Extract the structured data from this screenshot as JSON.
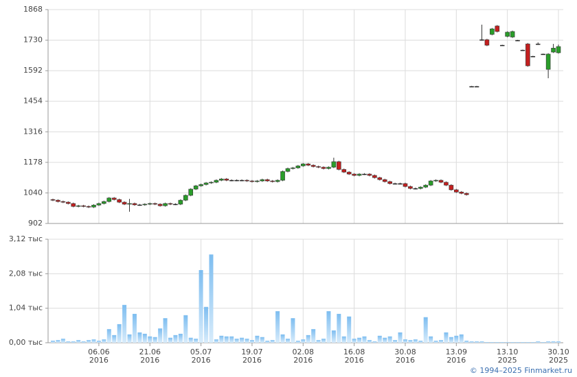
{
  "chart_data": [
    {
      "type": "candlestick",
      "ylim": [
        902,
        1868
      ],
      "yticks": [
        902,
        1040,
        1178,
        1316,
        1454,
        1592,
        1730,
        1868
      ],
      "grid": true,
      "up_color": "#2a9d2a",
      "down_color": "#c42020",
      "open": [
        1010,
        1007,
        1001,
        998,
        992,
        979,
        982,
        979,
        976,
        985,
        992,
        1001,
        1017,
        1010,
        998,
        989,
        992,
        986,
        986,
        989,
        992,
        989,
        982,
        992,
        989,
        989,
        1007,
        1029,
        1057,
        1072,
        1078,
        1085,
        1088,
        1097,
        1103,
        1097,
        1097,
        1097,
        1097,
        1094,
        1091,
        1094,
        1100,
        1094,
        1091,
        1097,
        1137,
        1150,
        1153,
        1162,
        1171,
        1165,
        1159,
        1156,
        1150,
        1156,
        1181,
        1146,
        1134,
        1125,
        1119,
        1125,
        1125,
        1119,
        1109,
        1100,
        1091,
        1082,
        1082,
        1082,
        1069,
        1060,
        1060,
        1066,
        1075,
        1094,
        1097,
        1088,
        1075,
        1054,
        1044,
        1038,
        1521,
        1521,
        1732,
        1732,
        1756,
        1794,
        1707,
        1747,
        1744,
        1729,
        1685,
        1713,
        1657,
        1713,
        1667,
        1598,
        1676,
        1673
      ],
      "high": [
        1014,
        1011,
        1005,
        1002,
        996,
        986,
        986,
        983,
        989,
        996,
        1005,
        1021,
        1021,
        1014,
        1002,
        1013,
        996,
        990,
        993,
        996,
        996,
        993,
        996,
        996,
        993,
        1011,
        1033,
        1061,
        1076,
        1082,
        1089,
        1092,
        1101,
        1107,
        1107,
        1101,
        1101,
        1101,
        1101,
        1098,
        1098,
        1104,
        1104,
        1098,
        1101,
        1141,
        1154,
        1157,
        1166,
        1175,
        1175,
        1169,
        1163,
        1160,
        1160,
        1199,
        1185,
        1150,
        1138,
        1129,
        1129,
        1129,
        1129,
        1123,
        1113,
        1104,
        1095,
        1086,
        1086,
        1086,
        1073,
        1064,
        1070,
        1079,
        1098,
        1101,
        1101,
        1092,
        1079,
        1058,
        1048,
        1042,
        1523,
        1523,
        1800,
        1736,
        1785,
        1798,
        1709,
        1770,
        1773,
        1731,
        1687,
        1717,
        1659,
        1720,
        1669,
        1671,
        1713,
        1710
      ],
      "low": [
        1003,
        997,
        994,
        988,
        975,
        975,
        975,
        972,
        972,
        981,
        988,
        997,
        1006,
        994,
        985,
        955,
        982,
        982,
        982,
        985,
        985,
        978,
        978,
        985,
        985,
        985,
        1003,
        1025,
        1053,
        1068,
        1074,
        1081,
        1084,
        1093,
        1093,
        1093,
        1093,
        1093,
        1090,
        1087,
        1087,
        1090,
        1090,
        1087,
        1087,
        1093,
        1133,
        1146,
        1149,
        1158,
        1161,
        1155,
        1152,
        1146,
        1146,
        1152,
        1142,
        1130,
        1121,
        1115,
        1115,
        1121,
        1115,
        1105,
        1096,
        1087,
        1078,
        1078,
        1078,
        1065,
        1056,
        1056,
        1056,
        1062,
        1071,
        1090,
        1084,
        1071,
        1050,
        1040,
        1034,
        1028,
        1519,
        1519,
        1728,
        1703,
        1752,
        1765,
        1705,
        1743,
        1740,
        1727,
        1683,
        1610,
        1655,
        1709,
        1665,
        1558,
        1672,
        1669
      ],
      "close": [
        1007,
        1001,
        998,
        992,
        979,
        982,
        979,
        976,
        985,
        992,
        1001,
        1017,
        1010,
        998,
        989,
        992,
        986,
        986,
        989,
        992,
        989,
        982,
        992,
        989,
        989,
        1007,
        1029,
        1057,
        1072,
        1078,
        1085,
        1088,
        1097,
        1103,
        1097,
        1097,
        1097,
        1097,
        1094,
        1091,
        1094,
        1100,
        1094,
        1091,
        1097,
        1137,
        1150,
        1153,
        1162,
        1171,
        1165,
        1159,
        1156,
        1150,
        1156,
        1181,
        1146,
        1134,
        1125,
        1119,
        1125,
        1125,
        1119,
        1109,
        1100,
        1091,
        1082,
        1082,
        1082,
        1069,
        1060,
        1060,
        1066,
        1075,
        1094,
        1097,
        1088,
        1075,
        1054,
        1044,
        1038,
        1032,
        1521,
        1521,
        1732,
        1707,
        1781,
        1769,
        1707,
        1766,
        1769,
        1729,
        1685,
        1614,
        1657,
        1713,
        1667,
        1667,
        1694,
        1701
      ]
    },
    {
      "type": "bar",
      "categories": [
        null,
        null,
        null,
        null,
        null,
        null,
        null,
        null,
        null,
        "06.06 2016",
        null,
        null,
        null,
        null,
        null,
        null,
        null,
        null,
        null,
        "21.06 2016",
        null,
        null,
        null,
        null,
        null,
        null,
        null,
        null,
        null,
        "05.07 2016",
        null,
        null,
        null,
        null,
        null,
        null,
        null,
        null,
        null,
        "19.07 2016",
        null,
        null,
        null,
        null,
        null,
        null,
        null,
        null,
        null,
        "02.08 2016",
        null,
        null,
        null,
        null,
        null,
        null,
        null,
        null,
        null,
        "16.08 2016",
        null,
        null,
        null,
        null,
        null,
        null,
        null,
        null,
        null,
        "30.08 2016",
        null,
        null,
        null,
        null,
        null,
        null,
        null,
        null,
        null,
        "13.09 2016",
        null,
        null,
        null,
        null,
        null,
        null,
        null,
        null,
        null,
        "13.10 2025",
        null,
        null,
        null,
        null,
        null,
        null,
        null,
        null,
        null,
        "30.10 2025"
      ],
      "values": [
        62,
        80,
        120,
        40,
        40,
        80,
        40,
        80,
        100,
        60,
        100,
        410,
        230,
        560,
        1140,
        250,
        870,
        310,
        270,
        190,
        170,
        430,
        740,
        150,
        230,
        270,
        830,
        150,
        120,
        2190,
        1080,
        2660,
        100,
        210,
        190,
        190,
        120,
        150,
        120,
        80,
        210,
        170,
        60,
        80,
        950,
        250,
        120,
        740,
        60,
        100,
        230,
        410,
        80,
        120,
        950,
        370,
        870,
        190,
        790,
        120,
        150,
        190,
        80,
        40,
        210,
        150,
        190,
        80,
        310,
        100,
        80,
        100,
        60,
        770,
        190,
        60,
        80,
        310,
        170,
        210,
        250,
        60,
        40,
        40,
        40,
        20,
        20,
        20,
        20,
        20,
        20,
        20,
        20,
        20,
        20,
        40,
        20,
        40,
        40,
        40
      ],
      "ylim": [
        0,
        3120
      ],
      "yticks": [
        {
          "value": 0,
          "label": "0,00 тыс"
        },
        {
          "value": 1040,
          "label": "1,04 тыс"
        },
        {
          "value": 2080,
          "label": "2,08 тыс"
        },
        {
          "value": 3120,
          "label": "3,12 тыс"
        }
      ],
      "grid": true
    }
  ],
  "copyright": "© 1994–2025 Finmarket.ru"
}
